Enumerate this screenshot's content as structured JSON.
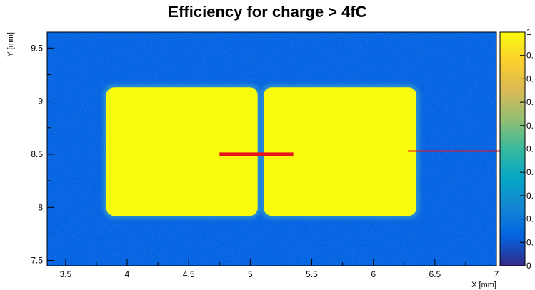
{
  "chart_data": {
    "type": "heatmap",
    "title": "Efficiency for charge > 4fC",
    "xlabel": "X [mm]",
    "ylabel": "Y [mm]",
    "xlim": [
      3.35,
      7.0
    ],
    "ylim": [
      7.45,
      9.65
    ],
    "x_ticks": [
      "3.5",
      "4",
      "4.5",
      "5",
      "5.5",
      "6",
      "6.5",
      "7"
    ],
    "y_ticks": [
      "7.5",
      "8",
      "8.5",
      "9",
      "9.5"
    ],
    "colorbar": {
      "range": [
        0,
        1
      ],
      "tick_labels": [
        "0",
        "0.",
        "0.",
        "0.",
        "0.",
        "0.",
        "0.",
        "0.",
        "0.",
        "0.",
        "1"
      ],
      "colors": [
        "#352a87",
        "#0363e1",
        "#1485d4",
        "#06a7c6",
        "#38b99e",
        "#92bf73",
        "#d9ba56",
        "#fcce2e",
        "#f9fb0e"
      ]
    },
    "background_efficiency": 0.1,
    "pads": [
      {
        "x": [
          3.83,
          5.06
        ],
        "y": [
          7.92,
          9.13
        ],
        "efficiency": 1.0
      },
      {
        "x": [
          5.11,
          6.35
        ],
        "y": [
          7.92,
          9.13
        ],
        "efficiency": 1.0
      }
    ],
    "annotations": [
      {
        "type": "line",
        "color": "#e8141c",
        "x": [
          4.75,
          5.35
        ],
        "y": [
          8.5,
          8.5
        ]
      },
      {
        "type": "line",
        "color": "#e8141c",
        "x": [
          6.28,
          7.1
        ],
        "y": [
          8.53,
          8.53
        ]
      }
    ]
  }
}
